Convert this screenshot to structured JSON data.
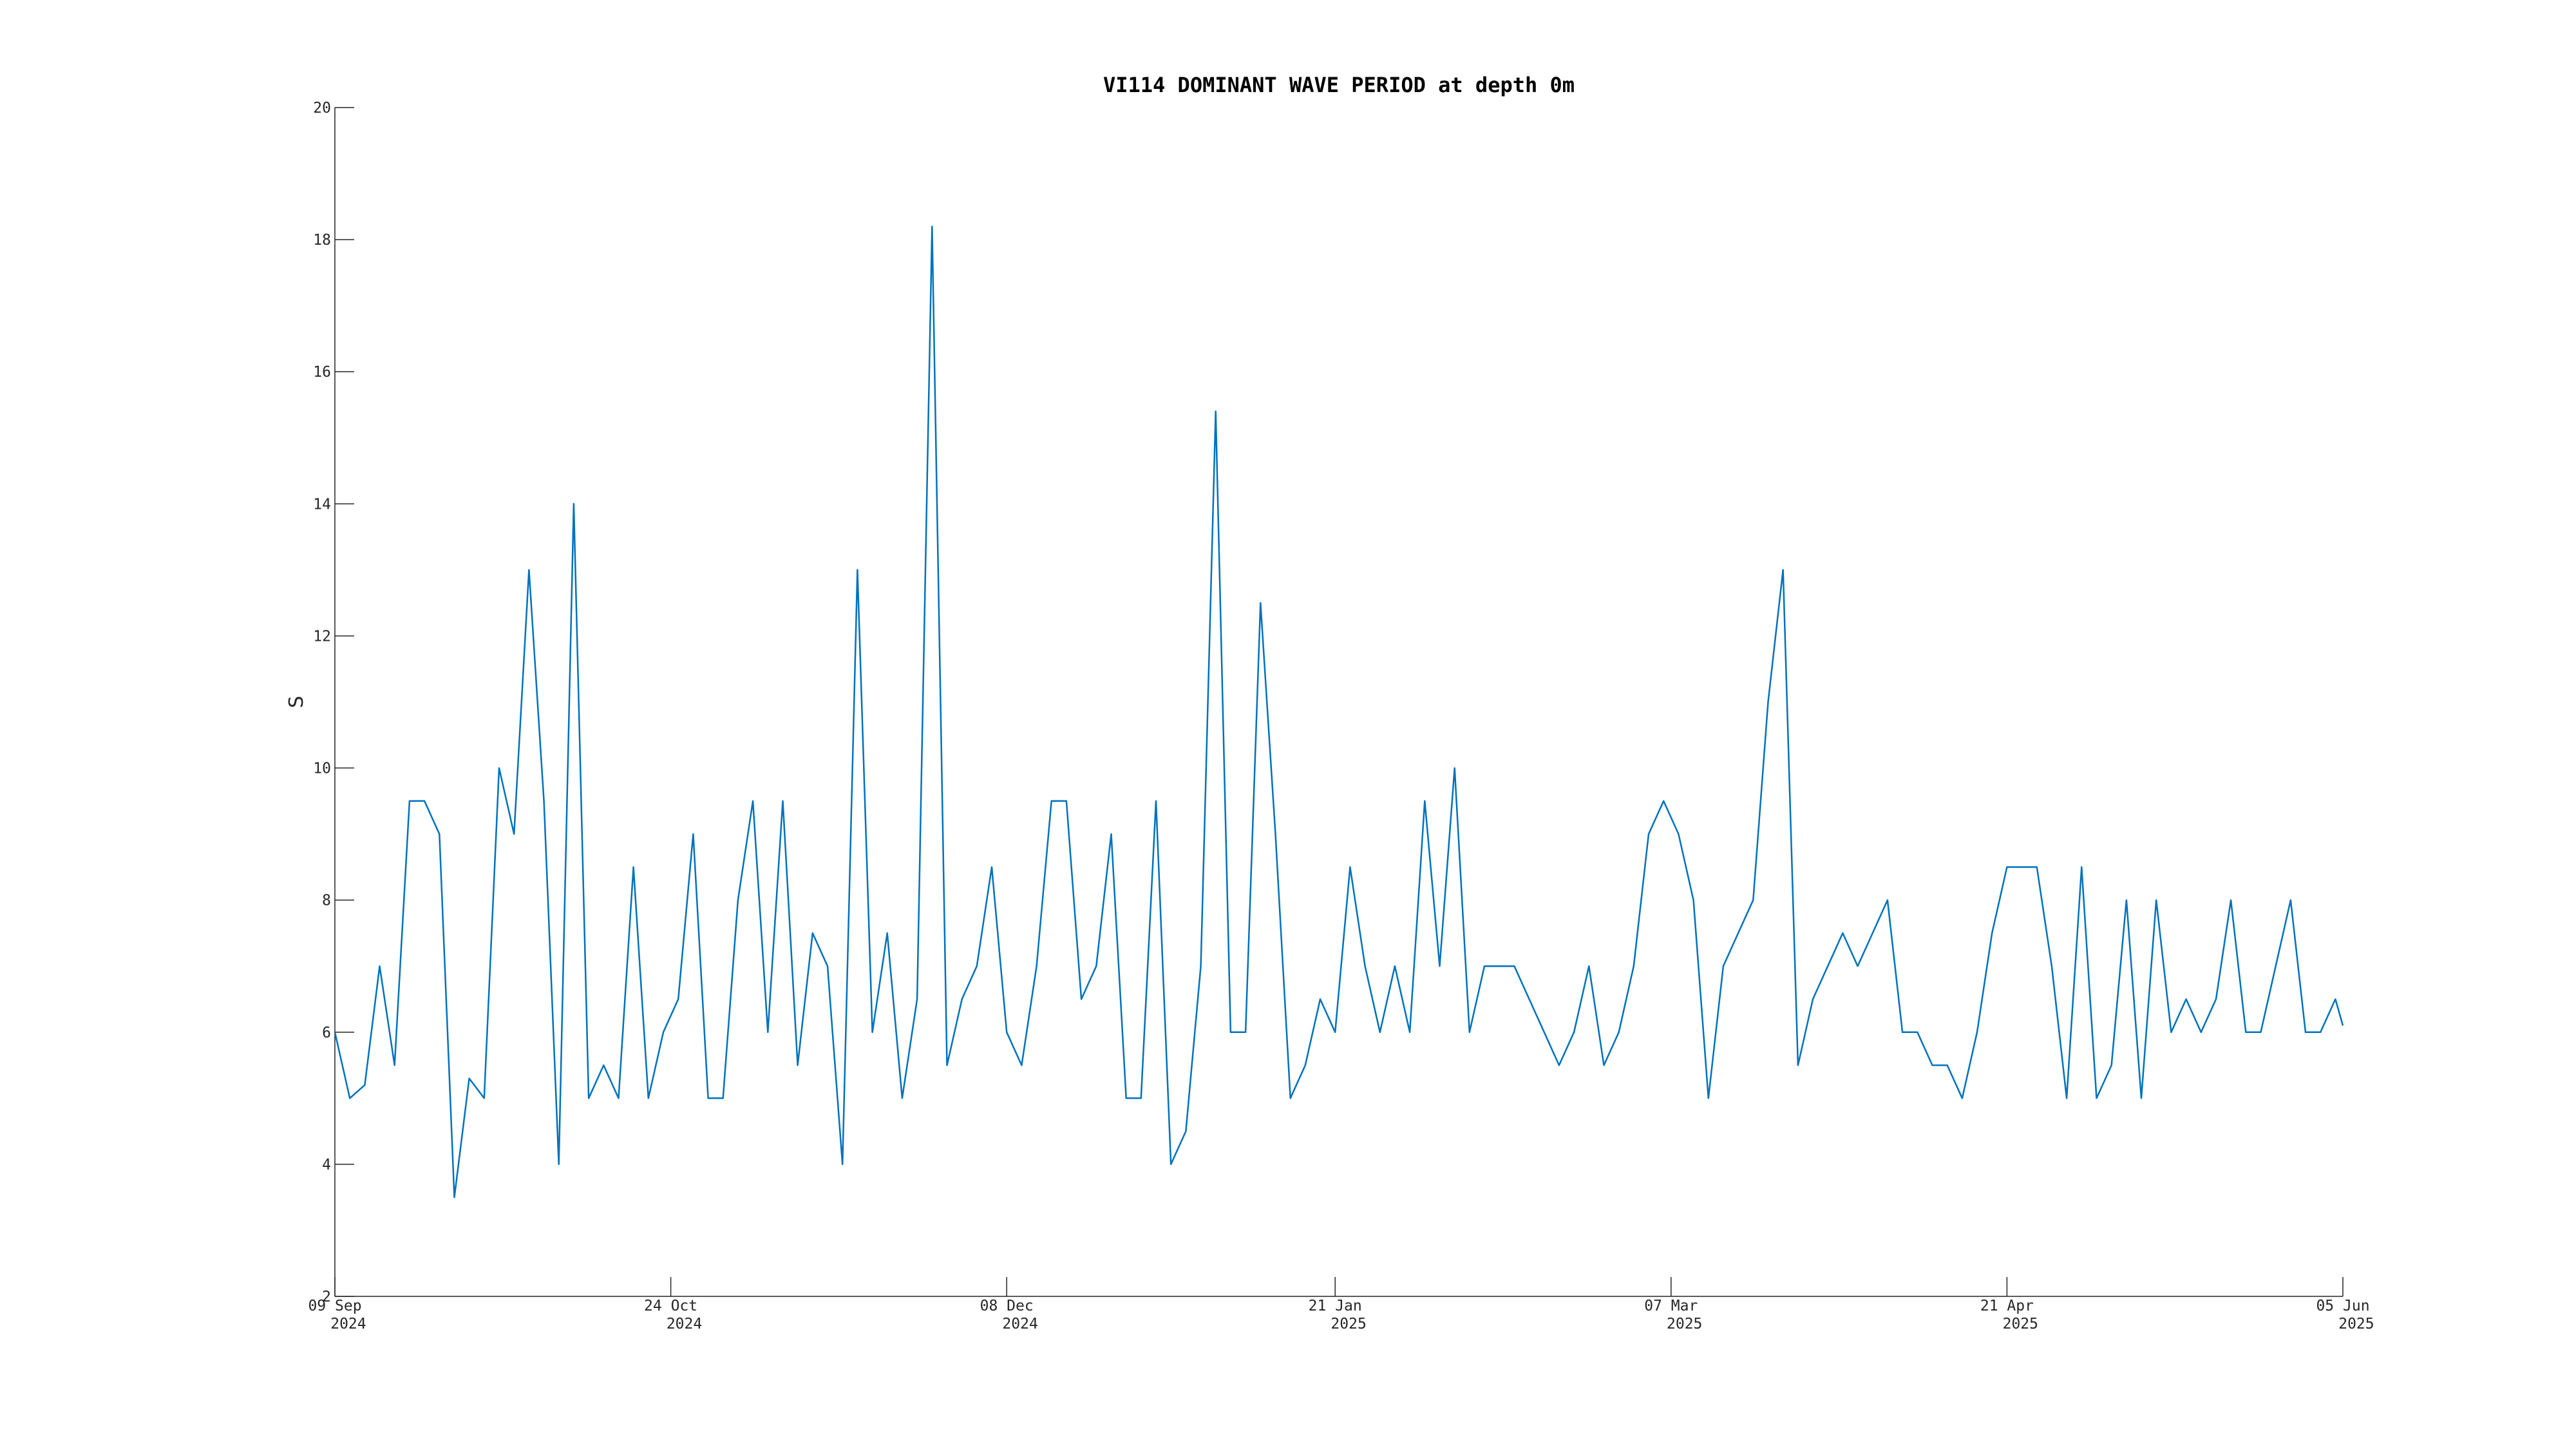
{
  "chart_data": {
    "type": "line",
    "title": "VI114 DOMINANT WAVE PERIOD at depth 0m",
    "ylabel": "S",
    "x": [
      "2024-09-09",
      "2024-09-11",
      "2024-09-13",
      "2024-09-15",
      "2024-09-17",
      "2024-09-19",
      "2024-09-21",
      "2024-09-23",
      "2024-09-25",
      "2024-09-27",
      "2024-09-29",
      "2024-10-01",
      "2024-10-03",
      "2024-10-05",
      "2024-10-07",
      "2024-10-09",
      "2024-10-11",
      "2024-10-13",
      "2024-10-15",
      "2024-10-17",
      "2024-10-19",
      "2024-10-21",
      "2024-10-23",
      "2024-10-25",
      "2024-10-27",
      "2024-10-29",
      "2024-10-31",
      "2024-11-02",
      "2024-11-04",
      "2024-11-06",
      "2024-11-08",
      "2024-11-10",
      "2024-11-12",
      "2024-11-14",
      "2024-11-16",
      "2024-11-18",
      "2024-11-20",
      "2024-11-22",
      "2024-11-24",
      "2024-11-26",
      "2024-11-28",
      "2024-11-30",
      "2024-12-02",
      "2024-12-04",
      "2024-12-06",
      "2024-12-08",
      "2024-12-10",
      "2024-12-12",
      "2024-12-14",
      "2024-12-16",
      "2024-12-18",
      "2024-12-20",
      "2024-12-22",
      "2024-12-24",
      "2024-12-26",
      "2024-12-28",
      "2024-12-30",
      "2025-01-01",
      "2025-01-03",
      "2025-01-05",
      "2025-01-07",
      "2025-01-09",
      "2025-01-11",
      "2025-01-13",
      "2025-01-15",
      "2025-01-17",
      "2025-01-19",
      "2025-01-21",
      "2025-01-23",
      "2025-01-25",
      "2025-01-27",
      "2025-01-29",
      "2025-01-31",
      "2025-02-02",
      "2025-02-04",
      "2025-02-06",
      "2025-02-08",
      "2025-02-10",
      "2025-02-12",
      "2025-02-14",
      "2025-02-16",
      "2025-02-18",
      "2025-02-20",
      "2025-02-22",
      "2025-02-24",
      "2025-02-26",
      "2025-02-28",
      "2025-03-02",
      "2025-03-04",
      "2025-03-06",
      "2025-03-08",
      "2025-03-10",
      "2025-03-12",
      "2025-03-14",
      "2025-03-16",
      "2025-03-18",
      "2025-03-20",
      "2025-03-22",
      "2025-03-24",
      "2025-03-26",
      "2025-03-28",
      "2025-03-30",
      "2025-04-01",
      "2025-04-03",
      "2025-04-05",
      "2025-04-07",
      "2025-04-09",
      "2025-04-11",
      "2025-04-13",
      "2025-04-15",
      "2025-04-17",
      "2025-04-19",
      "2025-04-21",
      "2025-04-23",
      "2025-04-25",
      "2025-04-27",
      "2025-04-29",
      "2025-05-01",
      "2025-05-03",
      "2025-05-05",
      "2025-05-07",
      "2025-05-09",
      "2025-05-11",
      "2025-05-13",
      "2025-05-15",
      "2025-05-17",
      "2025-05-19",
      "2025-05-21",
      "2025-05-23",
      "2025-05-25",
      "2025-05-27",
      "2025-05-29",
      "2025-05-31",
      "2025-06-02",
      "2025-06-04",
      "2025-06-05"
    ],
    "series": [
      {
        "name": "VI114",
        "color": "#0072bd",
        "values": [
          6,
          5,
          5.2,
          7,
          5.5,
          9.5,
          9.5,
          9,
          3.5,
          5.3,
          5,
          10,
          9,
          13,
          9.5,
          4,
          14,
          5,
          5.5,
          5,
          8.5,
          5,
          6,
          6.5,
          9,
          5,
          5,
          8,
          9.5,
          6,
          9.5,
          5.5,
          7.5,
          7,
          4,
          13,
          6,
          7.5,
          5,
          6.5,
          18.2,
          5.5,
          6.5,
          7,
          8.5,
          6,
          5.5,
          7,
          9.5,
          9.5,
          6.5,
          7,
          9,
          5,
          5,
          9.5,
          4,
          4.5,
          7,
          15.4,
          6,
          6,
          12.5,
          9,
          5,
          5.5,
          6.5,
          6,
          8.5,
          7,
          6,
          7,
          6,
          9.5,
          7,
          10,
          6,
          7,
          7,
          7,
          6.5,
          6,
          5.5,
          6,
          7,
          5.5,
          6,
          7,
          9,
          9.5,
          9,
          8,
          5,
          7,
          7.5,
          8,
          11,
          13,
          5.5,
          6.5,
          7,
          7.5,
          7,
          7.5,
          8,
          6,
          6,
          5.5,
          5.5,
          5,
          6,
          7.5,
          8.5,
          8.5,
          8.5,
          7,
          5,
          8.5,
          5,
          5.5,
          8,
          5,
          8,
          6,
          6.5,
          6,
          6.5,
          8,
          6,
          6,
          7,
          8,
          6,
          6,
          6.5,
          6.1
        ]
      }
    ],
    "xlim": [
      "2024-09-09",
      "2025-06-05"
    ],
    "xticks": [
      {
        "value": "2024-09-09",
        "label": "09 Sep 2024"
      },
      {
        "value": "2024-10-24",
        "label": "24 Oct 2024"
      },
      {
        "value": "2024-12-08",
        "label": "08 Dec 2024"
      },
      {
        "value": "2025-01-21",
        "label": "21 Jan 2025"
      },
      {
        "value": "2025-03-07",
        "label": "07 Mar 2025"
      },
      {
        "value": "2025-04-21",
        "label": "21 Apr 2025"
      },
      {
        "value": "2025-06-05",
        "label": "05 Jun 2025"
      }
    ],
    "ylim": [
      2,
      20
    ],
    "yticks": [
      2,
      4,
      6,
      8,
      10,
      12,
      14,
      16,
      18,
      20
    ],
    "grid": false
  }
}
